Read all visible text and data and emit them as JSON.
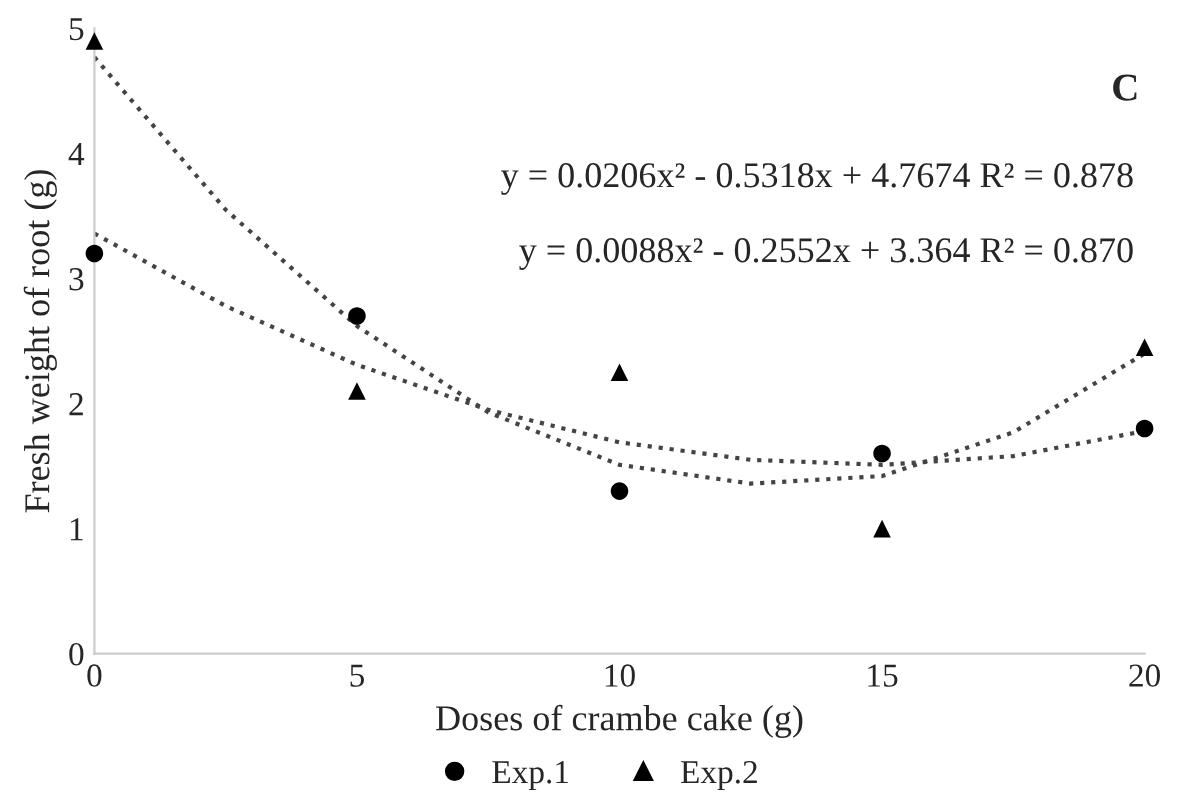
{
  "chart_data": {
    "type": "scatter",
    "xlabel": "Doses of crambe cake (g)",
    "ylabel": "Fresh weight of root (g)",
    "x": [
      0,
      5,
      10,
      15,
      20
    ],
    "xlim": [
      0,
      20
    ],
    "xticks": [
      0,
      5,
      10,
      15,
      20
    ],
    "ylim": [
      0,
      5
    ],
    "yticks": [
      0,
      1,
      2,
      3,
      4,
      5
    ],
    "grid": false,
    "legend": "bottom",
    "annotations": [
      "C",
      "y = 0.0206x² - 0.5318x + 4.7674 R² = 0.878",
      "y = 0.0088x² - 0.2552x + 3.364 R² = 0.870"
    ],
    "series": [
      {
        "name": "Exp.1",
        "marker": "circle",
        "color": "#000000",
        "values": [
          3.2,
          2.7,
          1.3,
          1.6,
          1.8
        ]
      },
      {
        "name": "Exp.2",
        "marker": "triangle",
        "color": "#000000",
        "values": [
          4.9,
          2.1,
          2.25,
          1.0,
          2.45
        ]
      },
      {
        "type": "line",
        "marker": "none",
        "line_style": "dotted",
        "color": "#444444",
        "x": [
          0,
          2.5,
          5,
          7.5,
          10,
          12.5,
          15,
          17.5,
          20
        ],
        "values": [
          4.77,
          3.55,
          2.62,
          1.93,
          1.51,
          1.36,
          1.42,
          1.77,
          2.4
        ]
      },
      {
        "type": "line",
        "marker": "none",
        "line_style": "dotted",
        "color": "#444444",
        "x": [
          0,
          2.5,
          5,
          7.5,
          10,
          12.5,
          15,
          17.5,
          20
        ],
        "values": [
          3.36,
          2.78,
          2.31,
          1.95,
          1.69,
          1.55,
          1.51,
          1.58,
          1.78
        ]
      }
    ]
  }
}
